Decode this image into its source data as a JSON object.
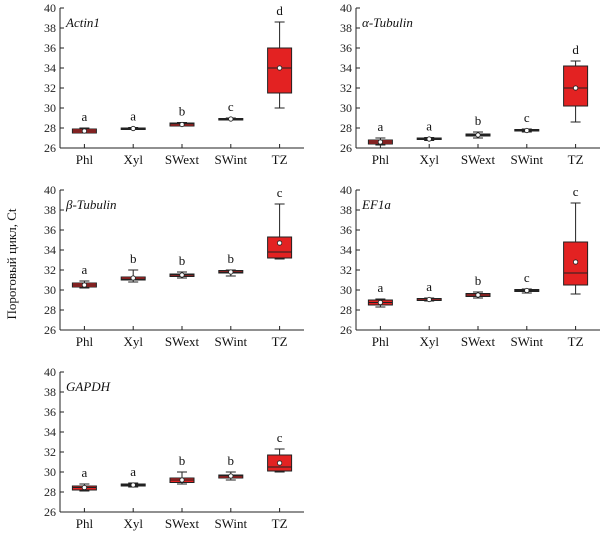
{
  "ylabel": "Пороговый цикл, Ct",
  "colors": {
    "box_fill": "#e32222",
    "box_stroke": "#222222",
    "axis": "#222222"
  },
  "chart_data": [
    {
      "type": "boxplot",
      "title": "Actin1",
      "categories": [
        "Phl",
        "Xyl",
        "SWext",
        "SWint",
        "TZ"
      ],
      "ylim": [
        26,
        40
      ],
      "yticks": [
        26,
        28,
        30,
        32,
        34,
        36,
        38,
        40
      ],
      "letters": [
        "a",
        "a",
        "b",
        "c",
        "d"
      ],
      "boxes": [
        {
          "min": 27.5,
          "q1": 27.5,
          "median": 27.7,
          "q3": 27.9,
          "max": 28.0,
          "mean": 27.7
        },
        {
          "min": 27.85,
          "q1": 27.9,
          "median": 27.95,
          "q3": 28.0,
          "max": 28.05,
          "mean": 27.95
        },
        {
          "min": 28.2,
          "q1": 28.2,
          "median": 28.4,
          "q3": 28.5,
          "max": 28.55,
          "mean": 28.35
        },
        {
          "min": 28.8,
          "q1": 28.85,
          "median": 28.9,
          "q3": 28.95,
          "max": 29.0,
          "mean": 28.9
        },
        {
          "min": 30.0,
          "q1": 31.5,
          "median": 34.0,
          "q3": 36.0,
          "max": 38.6,
          "mean": 34.0
        }
      ]
    },
    {
      "type": "boxplot",
      "title": "α-Tubulin",
      "categories": [
        "Phl",
        "Xyl",
        "SWext",
        "SWint",
        "TZ"
      ],
      "ylim": [
        26,
        40
      ],
      "yticks": [
        26,
        28,
        30,
        32,
        34,
        36,
        38,
        40
      ],
      "letters": [
        "a",
        "a",
        "b",
        "c",
        "d"
      ],
      "boxes": [
        {
          "min": 26.3,
          "q1": 26.4,
          "median": 26.6,
          "q3": 26.8,
          "max": 27.0,
          "mean": 26.6
        },
        {
          "min": 26.75,
          "q1": 26.85,
          "median": 26.9,
          "q3": 27.0,
          "max": 27.05,
          "mean": 26.9
        },
        {
          "min": 27.0,
          "q1": 27.2,
          "median": 27.3,
          "q3": 27.4,
          "max": 27.6,
          "mean": 27.3
        },
        {
          "min": 27.6,
          "q1": 27.7,
          "median": 27.75,
          "q3": 27.85,
          "max": 27.9,
          "mean": 27.75
        },
        {
          "min": 28.6,
          "q1": 30.2,
          "median": 32.0,
          "q3": 34.2,
          "max": 34.7,
          "mean": 32.0
        }
      ]
    },
    {
      "type": "boxplot",
      "title": "β-Tubulin",
      "categories": [
        "Phl",
        "Xyl",
        "SWext",
        "SWint",
        "TZ"
      ],
      "ylim": [
        26,
        40
      ],
      "yticks": [
        26,
        28,
        30,
        32,
        34,
        36,
        38,
        40
      ],
      "letters": [
        "a",
        "b",
        "b",
        "b",
        "c"
      ],
      "boxes": [
        {
          "min": 30.2,
          "q1": 30.3,
          "median": 30.5,
          "q3": 30.7,
          "max": 30.9,
          "mean": 30.5
        },
        {
          "min": 30.8,
          "q1": 31.0,
          "median": 31.1,
          "q3": 31.3,
          "max": 32.0,
          "mean": 31.2
        },
        {
          "min": 31.2,
          "q1": 31.35,
          "median": 31.5,
          "q3": 31.6,
          "max": 31.8,
          "mean": 31.5
        },
        {
          "min": 31.4,
          "q1": 31.7,
          "median": 31.8,
          "q3": 31.95,
          "max": 32.0,
          "mean": 31.8
        },
        {
          "min": 33.1,
          "q1": 33.2,
          "median": 33.8,
          "q3": 35.3,
          "max": 38.6,
          "mean": 34.7
        }
      ]
    },
    {
      "type": "boxplot",
      "title": "EF1a",
      "categories": [
        "Phl",
        "Xyl",
        "SWext",
        "SWint",
        "TZ"
      ],
      "ylim": [
        26,
        40
      ],
      "yticks": [
        26,
        28,
        30,
        32,
        34,
        36,
        38,
        40
      ],
      "letters": [
        "a",
        "a",
        "b",
        "c",
        "c"
      ],
      "boxes": [
        {
          "min": 28.3,
          "q1": 28.5,
          "median": 28.75,
          "q3": 29.0,
          "max": 29.1,
          "mean": 28.75
        },
        {
          "min": 28.9,
          "q1": 28.95,
          "median": 29.1,
          "q3": 29.15,
          "max": 29.2,
          "mean": 29.05
        },
        {
          "min": 29.2,
          "q1": 29.35,
          "median": 29.5,
          "q3": 29.65,
          "max": 29.8,
          "mean": 29.5
        },
        {
          "min": 29.7,
          "q1": 29.85,
          "median": 29.95,
          "q3": 30.05,
          "max": 30.1,
          "mean": 29.95
        },
        {
          "min": 29.6,
          "q1": 30.5,
          "median": 31.7,
          "q3": 34.8,
          "max": 38.7,
          "mean": 32.8
        }
      ]
    },
    {
      "type": "boxplot",
      "title": "GAPDH",
      "categories": [
        "Phl",
        "Xyl",
        "SWext",
        "SWint",
        "TZ"
      ],
      "ylim": [
        26,
        40
      ],
      "yticks": [
        26,
        28,
        30,
        32,
        34,
        36,
        38,
        40
      ],
      "letters": [
        "a",
        "a",
        "b",
        "b",
        "c"
      ],
      "boxes": [
        {
          "min": 28.1,
          "q1": 28.2,
          "median": 28.45,
          "q3": 28.6,
          "max": 28.8,
          "mean": 28.45
        },
        {
          "min": 28.5,
          "q1": 28.6,
          "median": 28.7,
          "q3": 28.8,
          "max": 28.9,
          "mean": 28.7
        },
        {
          "min": 28.8,
          "q1": 28.95,
          "median": 29.2,
          "q3": 29.4,
          "max": 30.0,
          "mean": 29.2
        },
        {
          "min": 29.2,
          "q1": 29.4,
          "median": 29.6,
          "q3": 29.7,
          "max": 30.0,
          "mean": 29.6
        },
        {
          "min": 30.0,
          "q1": 30.1,
          "median": 30.5,
          "q3": 31.7,
          "max": 32.3,
          "mean": 30.9
        }
      ]
    }
  ]
}
